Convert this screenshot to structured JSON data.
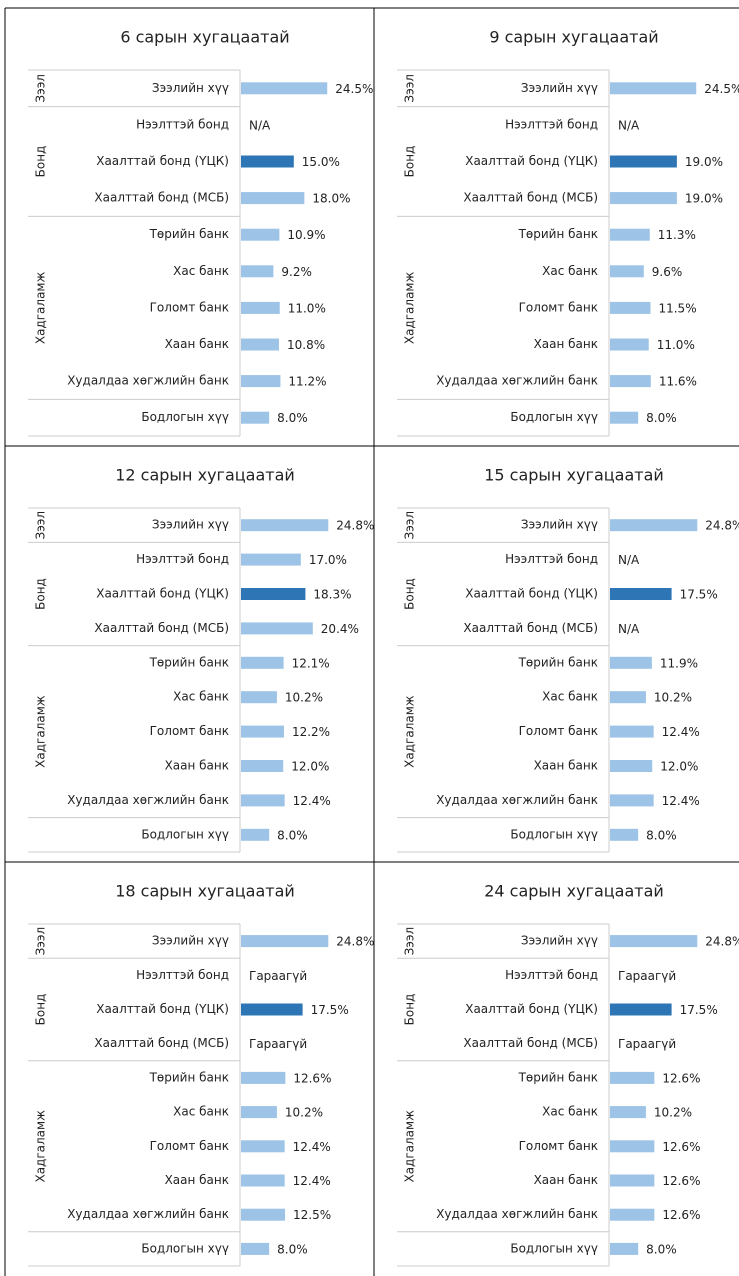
{
  "chart_data": [
    {
      "type": "bar",
      "orientation": "horizontal",
      "title": "6 сарын хугацаатай",
      "xlim": [
        0,
        25
      ],
      "groups": [
        {
          "name": "Зээл",
          "categories": [
            "Зээлийн хүү"
          ],
          "values": [
            24.5
          ],
          "value_labels": [
            "24.5%"
          ],
          "colors": [
            "#9dc3e6"
          ]
        },
        {
          "name": "Бонд",
          "categories": [
            "Нээлттэй бонд",
            "Хаалттай бонд (ҮЦК)",
            "Хаалттай бонд (МСБ)"
          ],
          "values": [
            null,
            15.0,
            18.0
          ],
          "value_labels": [
            "N/A",
            "15.0%",
            "18.0%"
          ],
          "colors": [
            "#9dc3e6",
            "#2e75b6",
            "#9dc3e6"
          ]
        },
        {
          "name": "Хадгаламж",
          "categories": [
            "Төрийн банк",
            "Хас банк",
            "Голомт банк",
            "Хаан банк",
            "Худалдаа хөгжлийн банк"
          ],
          "values": [
            10.9,
            9.2,
            11.0,
            10.8,
            11.2
          ],
          "value_labels": [
            "10.9%",
            "9.2%",
            "11.0%",
            "10.8%",
            "11.2%"
          ],
          "colors": [
            "#9dc3e6",
            "#9dc3e6",
            "#9dc3e6",
            "#9dc3e6",
            "#9dc3e6"
          ]
        },
        {
          "name": null,
          "categories": [
            "Бодлогын хүү"
          ],
          "values": [
            8.0
          ],
          "value_labels": [
            "8.0%"
          ],
          "colors": [
            "#9dc3e6"
          ]
        }
      ]
    },
    {
      "type": "bar",
      "orientation": "horizontal",
      "title": "9 сарын хугацаатай",
      "xlim": [
        0,
        25
      ],
      "groups": [
        {
          "name": "Зээл",
          "categories": [
            "Зээлийн хүү"
          ],
          "values": [
            24.5
          ],
          "value_labels": [
            "24.5%"
          ],
          "colors": [
            "#9dc3e6"
          ]
        },
        {
          "name": "Бонд",
          "categories": [
            "Нээлттэй бонд",
            "Хаалттай бонд (ҮЦК)",
            "Хаалттай бонд (МСБ)"
          ],
          "values": [
            null,
            19.0,
            19.0
          ],
          "value_labels": [
            "N/A",
            "19.0%",
            "19.0%"
          ],
          "colors": [
            "#9dc3e6",
            "#2e75b6",
            "#9dc3e6"
          ]
        },
        {
          "name": "Хадгаламж",
          "categories": [
            "Төрийн банк",
            "Хас банк",
            "Голомт банк",
            "Хаан банк",
            "Худалдаа хөгжлийн банк"
          ],
          "values": [
            11.3,
            9.6,
            11.5,
            11.0,
            11.6
          ],
          "value_labels": [
            "11.3%",
            "9.6%",
            "11.5%",
            "11.0%",
            "11.6%"
          ],
          "colors": [
            "#9dc3e6",
            "#9dc3e6",
            "#9dc3e6",
            "#9dc3e6",
            "#9dc3e6"
          ]
        },
        {
          "name": null,
          "categories": [
            "Бодлогын хүү"
          ],
          "values": [
            8.0
          ],
          "value_labels": [
            "8.0%"
          ],
          "colors": [
            "#9dc3e6"
          ]
        }
      ]
    },
    {
      "type": "bar",
      "orientation": "horizontal",
      "title": "12 сарын хугацаатай",
      "xlim": [
        0,
        25
      ],
      "groups": [
        {
          "name": "Зээл",
          "categories": [
            "Зээлийн хүү"
          ],
          "values": [
            24.8
          ],
          "value_labels": [
            "24.8%"
          ],
          "colors": [
            "#9dc3e6"
          ]
        },
        {
          "name": "Бонд",
          "categories": [
            "Нээлттэй бонд",
            "Хаалттай бонд (ҮЦК)",
            "Хаалттай бонд (МСБ)"
          ],
          "values": [
            17.0,
            18.3,
            20.4
          ],
          "value_labels": [
            "17.0%",
            "18.3%",
            "20.4%"
          ],
          "colors": [
            "#9dc3e6",
            "#2e75b6",
            "#9dc3e6"
          ]
        },
        {
          "name": "Хадгаламж",
          "categories": [
            "Төрийн банк",
            "Хас банк",
            "Голомт банк",
            "Хаан банк",
            "Худалдаа хөгжлийн банк"
          ],
          "values": [
            12.1,
            10.2,
            12.2,
            12.0,
            12.4
          ],
          "value_labels": [
            "12.1%",
            "10.2%",
            "12.2%",
            "12.0%",
            "12.4%"
          ],
          "colors": [
            "#9dc3e6",
            "#9dc3e6",
            "#9dc3e6",
            "#9dc3e6",
            "#9dc3e6"
          ]
        },
        {
          "name": null,
          "categories": [
            "Бодлогын хүү"
          ],
          "values": [
            8.0
          ],
          "value_labels": [
            "8.0%"
          ],
          "colors": [
            "#9dc3e6"
          ]
        }
      ]
    },
    {
      "type": "bar",
      "orientation": "horizontal",
      "title": "15 сарын хугацаатай",
      "xlim": [
        0,
        25
      ],
      "groups": [
        {
          "name": "Зээл",
          "categories": [
            "Зээлийн хүү"
          ],
          "values": [
            24.8
          ],
          "value_labels": [
            "24.8%"
          ],
          "colors": [
            "#9dc3e6"
          ]
        },
        {
          "name": "Бонд",
          "categories": [
            "Нээлттэй бонд",
            "Хаалттай бонд (ҮЦК)",
            "Хаалттай бонд (МСБ)"
          ],
          "values": [
            null,
            17.5,
            null
          ],
          "value_labels": [
            "N/A",
            "17.5%",
            "N/A"
          ],
          "colors": [
            "#9dc3e6",
            "#2e75b6",
            "#9dc3e6"
          ]
        },
        {
          "name": "Хадгаламж",
          "categories": [
            "Төрийн банк",
            "Хас банк",
            "Голомт банк",
            "Хаан банк",
            "Худалдаа хөгжлийн банк"
          ],
          "values": [
            11.9,
            10.2,
            12.4,
            12.0,
            12.4
          ],
          "value_labels": [
            "11.9%",
            "10.2%",
            "12.4%",
            "12.0%",
            "12.4%"
          ],
          "colors": [
            "#9dc3e6",
            "#9dc3e6",
            "#9dc3e6",
            "#9dc3e6",
            "#9dc3e6"
          ]
        },
        {
          "name": null,
          "categories": [
            "Бодлогын хүү"
          ],
          "values": [
            8.0
          ],
          "value_labels": [
            "8.0%"
          ],
          "colors": [
            "#9dc3e6"
          ]
        }
      ]
    },
    {
      "type": "bar",
      "orientation": "horizontal",
      "title": "18 сарын хугацаатай",
      "xlim": [
        0,
        25
      ],
      "groups": [
        {
          "name": "Зээл",
          "categories": [
            "Зээлийн хүү"
          ],
          "values": [
            24.8
          ],
          "value_labels": [
            "24.8%"
          ],
          "colors": [
            "#9dc3e6"
          ]
        },
        {
          "name": "Бонд",
          "categories": [
            "Нээлттэй бонд",
            "Хаалттай бонд (ҮЦК)",
            "Хаалттай бонд (МСБ)"
          ],
          "values": [
            null,
            17.5,
            null
          ],
          "value_labels": [
            "Гараагүй",
            "17.5%",
            "Гараагүй"
          ],
          "colors": [
            "#9dc3e6",
            "#2e75b6",
            "#9dc3e6"
          ]
        },
        {
          "name": "Хадгаламж",
          "categories": [
            "Төрийн банк",
            "Хас банк",
            "Голомт банк",
            "Хаан банк",
            "Худалдаа хөгжлийн банк"
          ],
          "values": [
            12.6,
            10.2,
            12.4,
            12.4,
            12.5
          ],
          "value_labels": [
            "12.6%",
            "10.2%",
            "12.4%",
            "12.4%",
            "12.5%"
          ],
          "colors": [
            "#9dc3e6",
            "#9dc3e6",
            "#9dc3e6",
            "#9dc3e6",
            "#9dc3e6"
          ]
        },
        {
          "name": null,
          "categories": [
            "Бодлогын хүү"
          ],
          "values": [
            8.0
          ],
          "value_labels": [
            "8.0%"
          ],
          "colors": [
            "#9dc3e6"
          ]
        }
      ]
    },
    {
      "type": "bar",
      "orientation": "horizontal",
      "title": "24 сарын хугацаатай",
      "xlim": [
        0,
        25
      ],
      "groups": [
        {
          "name": "Зээл",
          "categories": [
            "Зээлийн хүү"
          ],
          "values": [
            24.8
          ],
          "value_labels": [
            "24.8%"
          ],
          "colors": [
            "#9dc3e6"
          ]
        },
        {
          "name": "Бонд",
          "categories": [
            "Нээлттэй бонд",
            "Хаалттай бонд (ҮЦК)",
            "Хаалттай бонд (МСБ)"
          ],
          "values": [
            null,
            17.5,
            null
          ],
          "value_labels": [
            "Гараагүй",
            "17.5%",
            "Гараагүй"
          ],
          "colors": [
            "#9dc3e6",
            "#2e75b6",
            "#9dc3e6"
          ]
        },
        {
          "name": "Хадгаламж",
          "categories": [
            "Төрийн банк",
            "Хас банк",
            "Голомт банк",
            "Хаан банк",
            "Худалдаа хөгжлийн банк"
          ],
          "values": [
            12.6,
            10.2,
            12.6,
            12.6,
            12.6
          ],
          "value_labels": [
            "12.6%",
            "10.2%",
            "12.6%",
            "12.6%",
            "12.6%"
          ],
          "colors": [
            "#9dc3e6",
            "#9dc3e6",
            "#9dc3e6",
            "#9dc3e6",
            "#9dc3e6"
          ]
        },
        {
          "name": null,
          "categories": [
            "Бодлогын хүү"
          ],
          "values": [
            8.0
          ],
          "value_labels": [
            "8.0%"
          ],
          "colors": [
            "#9dc3e6"
          ]
        }
      ]
    }
  ]
}
